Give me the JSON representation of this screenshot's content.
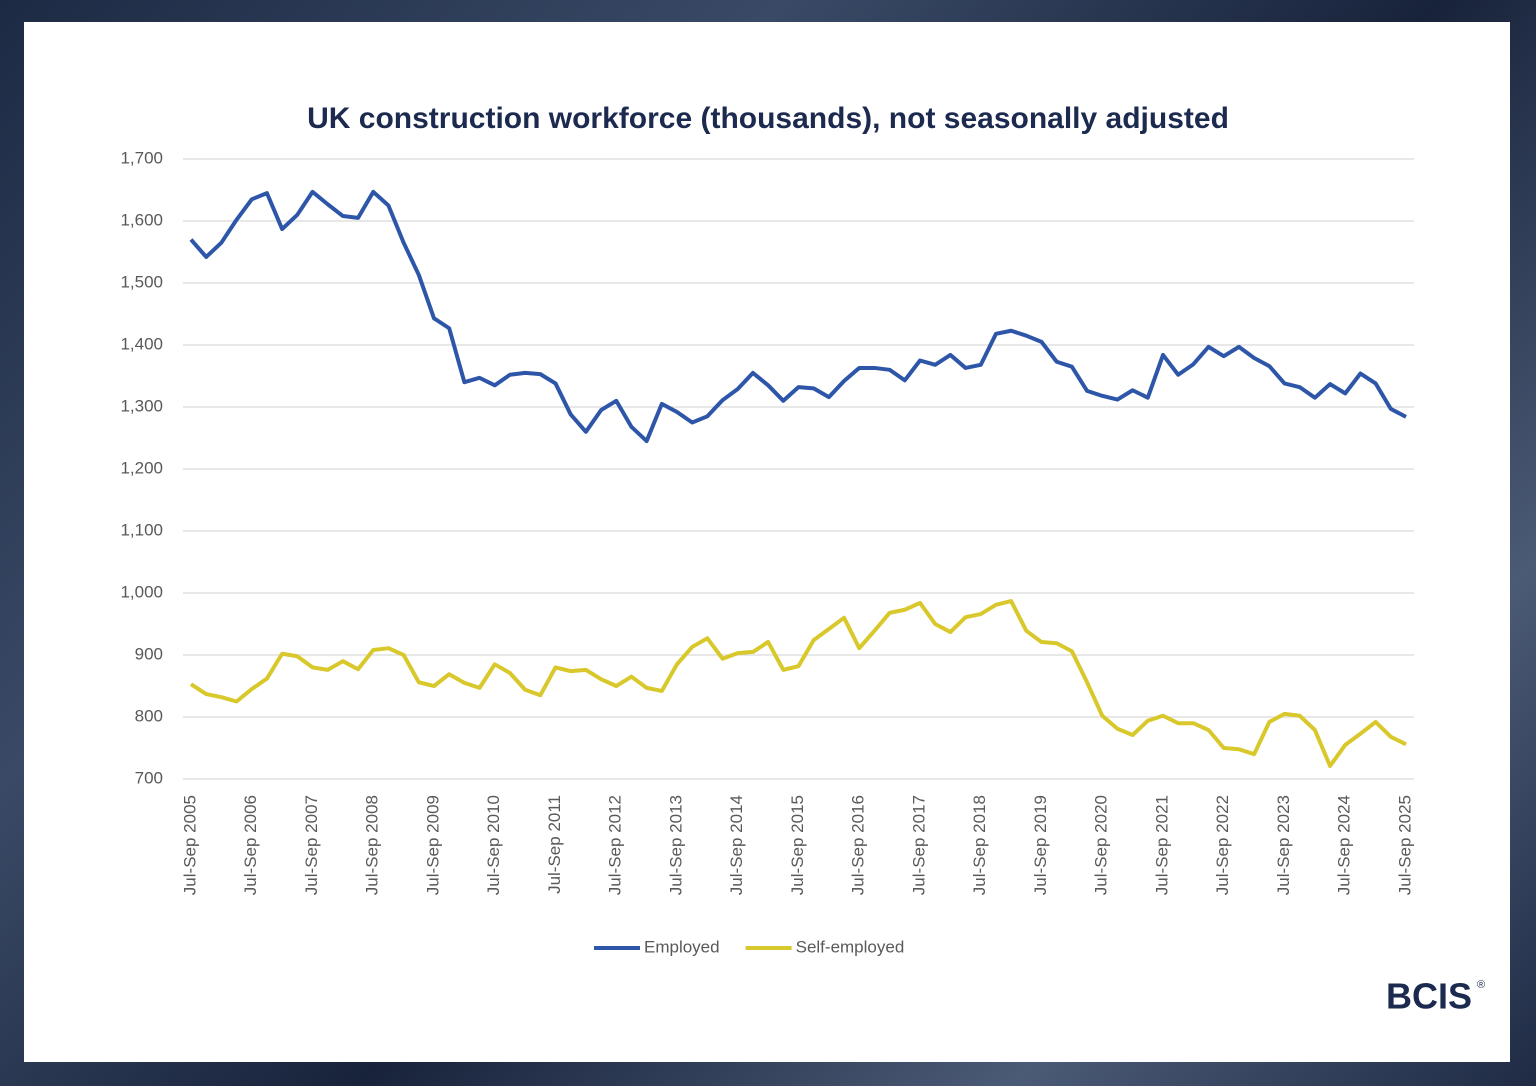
{
  "chart_data": {
    "type": "line",
    "title": "UK construction workforce (thousands), not seasonally adjusted",
    "categories": [
      "Jul-Sep 2005",
      null,
      null,
      null,
      "Jul-Sep 2006",
      null,
      null,
      null,
      "Jul-Sep 2007",
      null,
      null,
      null,
      "Jul-Sep 2008",
      null,
      null,
      null,
      "Jul-Sep 2009",
      null,
      null,
      null,
      "Jul-Sep 2010",
      null,
      null,
      null,
      "Jul-Sep 2011",
      null,
      null,
      null,
      "Jul-Sep 2012",
      null,
      null,
      null,
      "Jul-Sep 2013",
      null,
      null,
      null,
      "Jul-Sep 2014",
      null,
      null,
      null,
      "Jul-Sep 2015",
      null,
      null,
      null,
      "Jul-Sep 2016",
      null,
      null,
      null,
      "Jul-Sep 2017",
      null,
      null,
      null,
      "Jul-Sep 2018",
      null,
      null,
      null,
      "Jul-Sep 2019",
      null,
      null,
      null,
      "Jul-Sep 2020",
      null,
      null,
      null,
      "Jul-Sep 2021",
      null,
      null,
      null,
      "Jul-Sep 2022",
      null,
      null,
      null,
      "Jul-Sep 2023",
      null,
      null,
      null,
      "Jul-Sep 2024",
      null,
      null,
      null,
      "Jul-Sep 2025"
    ],
    "series": [
      {
        "name": "Employed",
        "color": "#2e56a8",
        "values": [
          1570,
          1542,
          1565,
          1602,
          1635,
          1645,
          1587,
          1610,
          1647,
          1627,
          1608,
          1605,
          1647,
          1625,
          1565,
          1513,
          1443,
          1427,
          1340,
          1347,
          1335,
          1352,
          1355,
          1353,
          1338,
          1288,
          1260,
          1295,
          1310,
          1268,
          1245,
          1305,
          1292,
          1275,
          1285,
          1311,
          1329,
          1355,
          1335,
          1310,
          1332,
          1330,
          1316,
          1342,
          1363,
          1363,
          1360,
          1343,
          1375,
          1368,
          1384,
          1363,
          1368,
          1418,
          1423,
          1415,
          1405,
          1373,
          1365,
          1326,
          1318,
          1312,
          1327,
          1315,
          1384,
          1352,
          1369,
          1397,
          1382,
          1397,
          1379,
          1366,
          1338,
          1332,
          1315,
          1337,
          1322,
          1354,
          1338,
          1297,
          1284
        ]
      },
      {
        "name": "Self-employed",
        "color": "#d9c82b",
        "values": [
          853,
          837,
          832,
          825,
          845,
          862,
          902,
          898,
          880,
          876,
          890,
          877,
          908,
          911,
          900,
          856,
          850,
          869,
          855,
          847,
          885,
          871,
          844,
          835,
          880,
          874,
          876,
          861,
          850,
          865,
          847,
          842,
          885,
          913,
          927,
          894,
          903,
          905,
          921,
          876,
          882,
          924,
          942,
          960,
          911,
          939,
          968,
          973,
          984,
          950,
          937,
          961,
          966,
          981,
          987,
          939,
          921,
          919,
          906,
          856,
          802,
          781,
          771,
          794,
          802,
          790,
          790,
          779,
          750,
          748,
          740,
          792,
          805,
          802,
          779,
          721,
          755,
          773,
          792,
          768,
          756
        ]
      }
    ],
    "ylim": [
      700,
      1700
    ],
    "yticks": [
      {
        "value": 1700,
        "label": "1,700"
      },
      {
        "value": 1600,
        "label": "1,600"
      },
      {
        "value": 1500,
        "label": "1,500"
      },
      {
        "value": 1400,
        "label": "1,400"
      },
      {
        "value": 1300,
        "label": "1,300"
      },
      {
        "value": 1200,
        "label": "1,200"
      },
      {
        "value": 1100,
        "label": "1,100"
      },
      {
        "value": 1000,
        "label": "1,000"
      },
      900,
      800,
      700
    ],
    "grid": true,
    "legend": "bottom"
  },
  "logo": {
    "text": "BCIS",
    "mark": "®"
  }
}
